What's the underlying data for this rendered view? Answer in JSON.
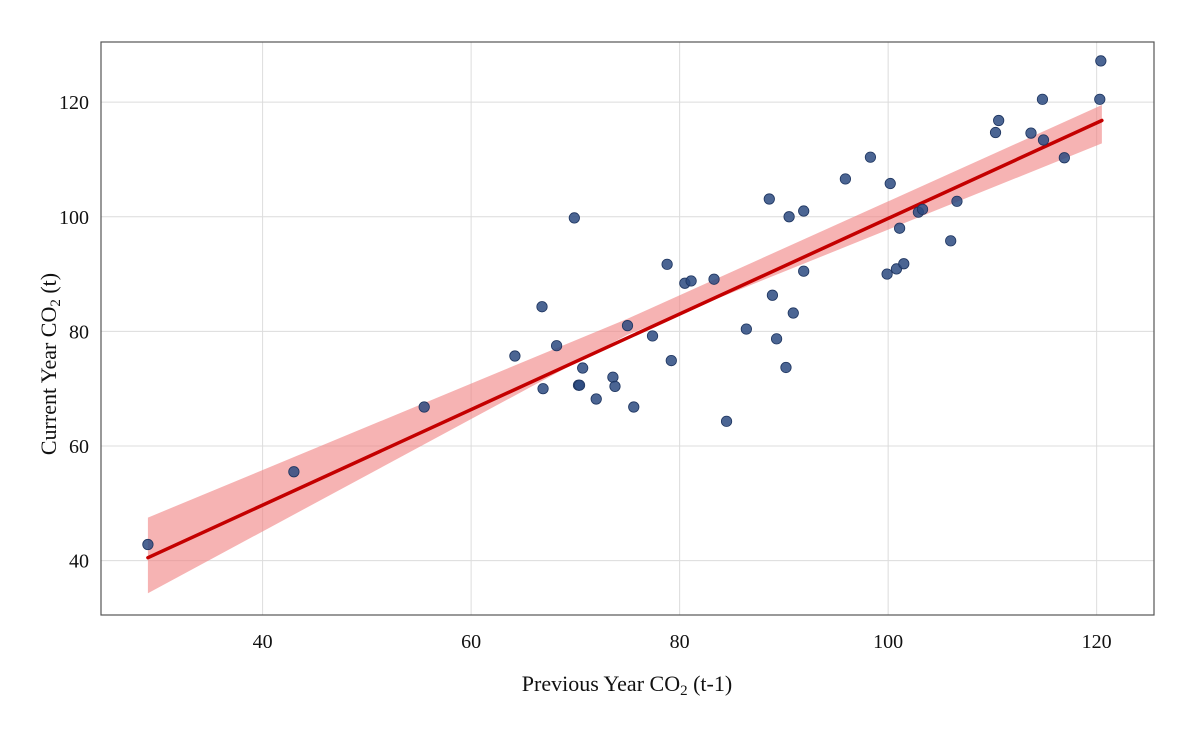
{
  "chart_data": {
    "type": "scatter",
    "title": "",
    "xlabel": {
      "main": "Previous Year CO",
      "sub": "2",
      "suffix": " (t-1)"
    },
    "ylabel": {
      "main": "Current Year CO",
      "sub": "2",
      "suffix": " (t)"
    },
    "xlim": [
      24.5,
      125.5
    ],
    "ylim": [
      30.5,
      130.5
    ],
    "x_ticks": [
      40,
      60,
      80,
      100,
      120
    ],
    "y_ticks": [
      40,
      60,
      80,
      100,
      120
    ],
    "x_tick_labels": [
      "40",
      "60",
      "80",
      "100",
      "120"
    ],
    "y_tick_labels": [
      "40",
      "60",
      "80",
      "100",
      "120"
    ],
    "grid": true,
    "colors": {
      "points": "#2b4a80",
      "fit_line": "#c40000",
      "band": "#f08080"
    },
    "regression": {
      "x_range": [
        29,
        120.5
      ],
      "y_at_start": 40.5,
      "y_at_end": 116.8,
      "band_upper": [
        [
          29,
          47.5
        ],
        [
          75,
          82.2
        ],
        [
          120.5,
          119.5
        ]
      ],
      "band_lower": [
        [
          29,
          34.3
        ],
        [
          75,
          79.4
        ],
        [
          120.5,
          112.8
        ]
      ]
    },
    "points": [
      [
        29.0,
        42.8
      ],
      [
        43.0,
        55.5
      ],
      [
        55.5,
        66.8
      ],
      [
        64.2,
        75.7
      ],
      [
        66.8,
        84.3
      ],
      [
        66.9,
        70.0
      ],
      [
        68.2,
        77.5
      ],
      [
        69.9,
        99.8
      ],
      [
        70.3,
        70.6
      ],
      [
        70.4,
        70.6
      ],
      [
        70.7,
        73.6
      ],
      [
        72.0,
        68.2
      ],
      [
        73.6,
        72.0
      ],
      [
        73.8,
        70.4
      ],
      [
        75.0,
        81.0
      ],
      [
        75.6,
        66.8
      ],
      [
        77.4,
        79.2
      ],
      [
        78.8,
        91.7
      ],
      [
        79.2,
        74.9
      ],
      [
        80.5,
        88.4
      ],
      [
        81.1,
        88.8
      ],
      [
        83.3,
        89.1
      ],
      [
        84.5,
        64.3
      ],
      [
        86.4,
        80.4
      ],
      [
        88.6,
        103.1
      ],
      [
        88.9,
        86.3
      ],
      [
        89.3,
        78.7
      ],
      [
        90.2,
        73.7
      ],
      [
        90.5,
        100.0
      ],
      [
        90.9,
        83.2
      ],
      [
        91.9,
        101.0
      ],
      [
        91.9,
        90.5
      ],
      [
        95.9,
        106.6
      ],
      [
        98.3,
        110.4
      ],
      [
        99.9,
        90.0
      ],
      [
        100.2,
        105.8
      ],
      [
        100.8,
        90.9
      ],
      [
        101.1,
        98.0
      ],
      [
        101.5,
        91.8
      ],
      [
        102.9,
        100.8
      ],
      [
        103.3,
        101.3
      ],
      [
        106.0,
        95.8
      ],
      [
        106.6,
        102.7
      ],
      [
        110.3,
        114.7
      ],
      [
        110.6,
        116.8
      ],
      [
        113.7,
        114.6
      ],
      [
        114.8,
        120.5
      ],
      [
        114.9,
        113.4
      ],
      [
        116.9,
        110.3
      ],
      [
        120.3,
        120.5
      ],
      [
        120.4,
        127.2
      ]
    ]
  }
}
